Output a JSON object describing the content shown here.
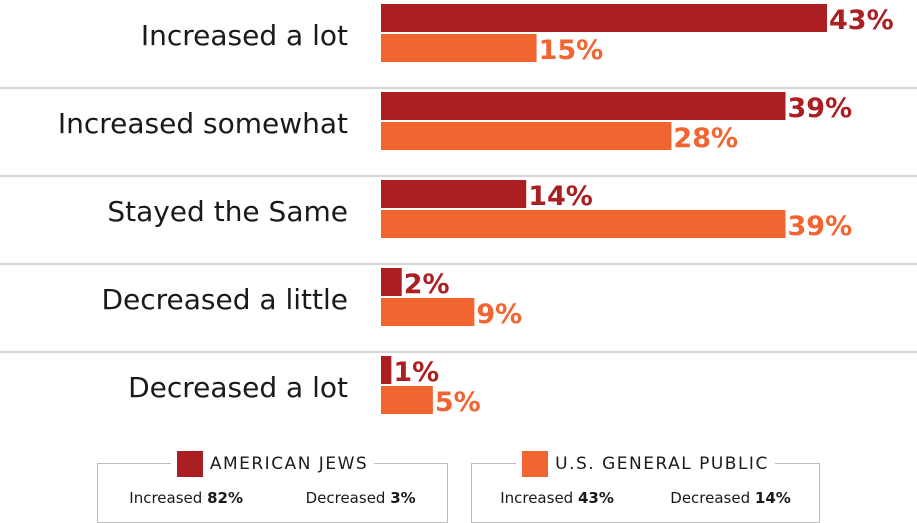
{
  "colors": {
    "jews": "#ab1f23",
    "public": "#f26430"
  },
  "chart_data": {
    "type": "bar",
    "orientation": "horizontal",
    "categories": [
      "Increased a lot",
      "Increased somewhat",
      "Stayed the Same",
      "Decreased a little",
      "Decreased a lot"
    ],
    "series": [
      {
        "name": "AMERICAN JEWS",
        "values": [
          43,
          39,
          14,
          2,
          1
        ]
      },
      {
        "name": "U.S. GENERAL PUBLIC",
        "values": [
          15,
          28,
          39,
          9,
          5
        ]
      }
    ],
    "value_suffix": "%",
    "xlim": [
      0,
      43
    ],
    "grid": false,
    "legend": "bottom"
  },
  "legend": [
    {
      "name": "AMERICAN JEWS",
      "increased_label": "Increased",
      "increased_value": "82%",
      "decreased_label": "Decreased",
      "decreased_value": "3%"
    },
    {
      "name": "U.S. GENERAL PUBLIC",
      "increased_label": "Increased",
      "increased_value": "43%",
      "decreased_label": "Decreased",
      "decreased_value": "14%"
    }
  ]
}
